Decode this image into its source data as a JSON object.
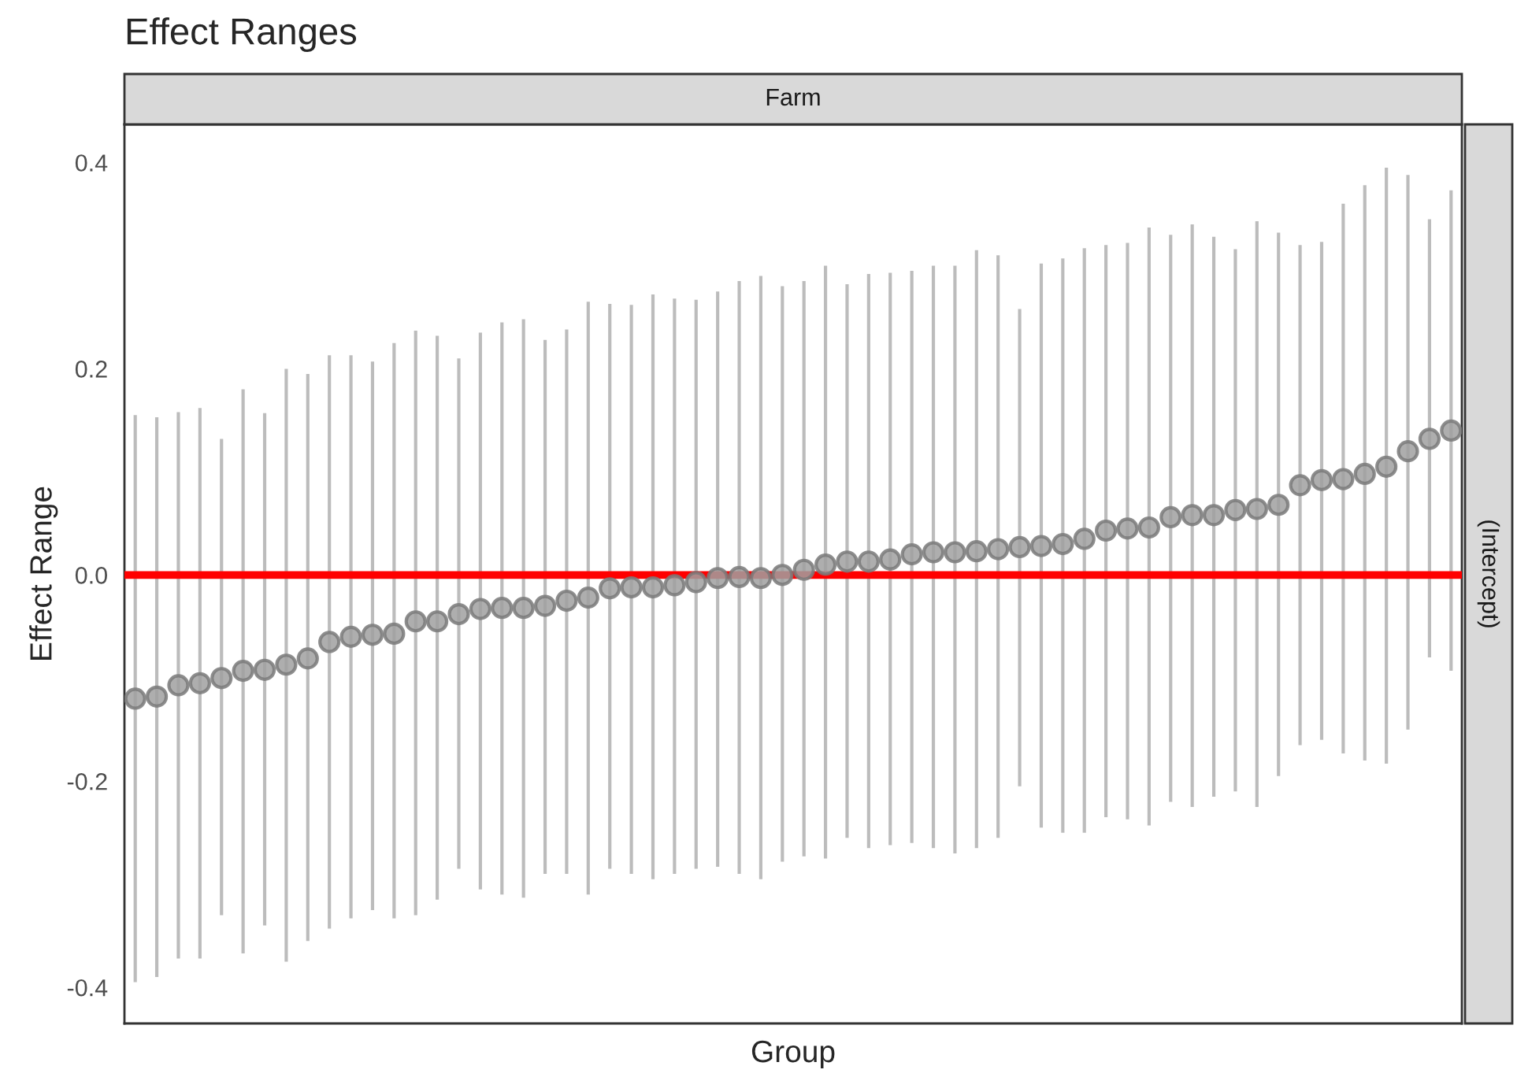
{
  "chart_data": {
    "type": "scatter",
    "title": "Effect Ranges",
    "xlabel": "Group",
    "ylabel": "Effect Range",
    "annotations": [
      "Farm",
      "(Intercept)"
    ],
    "categories": [
      null,
      null,
      null,
      null,
      null,
      null,
      null,
      null,
      null,
      null,
      null,
      null,
      null,
      null,
      null,
      null,
      null,
      null,
      null,
      null,
      null,
      null,
      null,
      null,
      null,
      null,
      null,
      null,
      null,
      null,
      null,
      null,
      null,
      null,
      null,
      null,
      null,
      null,
      null,
      null,
      null,
      null,
      null,
      null,
      null,
      null,
      null,
      null,
      null,
      null,
      null,
      null,
      null,
      null,
      null,
      null,
      null,
      null,
      null,
      null,
      null,
      null
    ],
    "series": [
      {
        "color": "#a0a0a0",
        "values": [
          -0.12,
          -0.118,
          -0.107,
          -0.105,
          -0.1,
          -0.093,
          -0.092,
          -0.087,
          -0.081,
          -0.065,
          -0.06,
          -0.058,
          -0.057,
          -0.045,
          -0.045,
          -0.038,
          -0.033,
          -0.032,
          -0.032,
          -0.03,
          -0.025,
          -0.022,
          -0.013,
          -0.012,
          -0.012,
          -0.01,
          -0.007,
          -0.003,
          -0.002,
          -0.003,
          0.0,
          0.005,
          0.01,
          0.013,
          0.013,
          0.015,
          0.02,
          0.022,
          0.022,
          0.023,
          0.025,
          0.027,
          0.028,
          0.03,
          0.035,
          0.043,
          0.045,
          0.046,
          0.056,
          0.058,
          0.058,
          0.063,
          0.064,
          0.068,
          0.087,
          0.092,
          0.093,
          0.098,
          0.105,
          0.12,
          0.132,
          0.14
        ],
        "errors": [
          [
            -0.395,
            0.155
          ],
          [
            -0.39,
            0.153
          ],
          [
            -0.372,
            0.158
          ],
          [
            -0.372,
            0.162
          ],
          [
            -0.33,
            0.132
          ],
          [
            -0.367,
            0.18
          ],
          [
            -0.34,
            0.157
          ],
          [
            -0.375,
            0.2
          ],
          [
            -0.355,
            0.195
          ],
          [
            -0.343,
            0.213
          ],
          [
            -0.333,
            0.213
          ],
          [
            -0.325,
            0.207
          ],
          [
            -0.333,
            0.225
          ],
          [
            -0.33,
            0.237
          ],
          [
            -0.315,
            0.232
          ],
          [
            -0.285,
            0.21
          ],
          [
            -0.305,
            0.235
          ],
          [
            -0.31,
            0.245
          ],
          [
            -0.313,
            0.248
          ],
          [
            -0.29,
            0.228
          ],
          [
            -0.29,
            0.238
          ],
          [
            -0.31,
            0.265
          ],
          [
            -0.285,
            0.263
          ],
          [
            -0.29,
            0.262
          ],
          [
            -0.295,
            0.272
          ],
          [
            -0.29,
            0.268
          ],
          [
            -0.285,
            0.267
          ],
          [
            -0.283,
            0.275
          ],
          [
            -0.29,
            0.285
          ],
          [
            -0.295,
            0.29
          ],
          [
            -0.278,
            0.28
          ],
          [
            -0.273,
            0.285
          ],
          [
            -0.275,
            0.3
          ],
          [
            -0.255,
            0.282
          ],
          [
            -0.265,
            0.292
          ],
          [
            -0.262,
            0.293
          ],
          [
            -0.26,
            0.295
          ],
          [
            -0.265,
            0.3
          ],
          [
            -0.27,
            0.3
          ],
          [
            -0.265,
            0.315
          ],
          [
            -0.255,
            0.31
          ],
          [
            -0.205,
            0.258
          ],
          [
            -0.245,
            0.302
          ],
          [
            -0.25,
            0.307
          ],
          [
            -0.25,
            0.317
          ],
          [
            -0.235,
            0.32
          ],
          [
            -0.237,
            0.322
          ],
          [
            -0.243,
            0.337
          ],
          [
            -0.22,
            0.33
          ],
          [
            -0.225,
            0.34
          ],
          [
            -0.215,
            0.328
          ],
          [
            -0.21,
            0.316
          ],
          [
            -0.225,
            0.343
          ],
          [
            -0.195,
            0.332
          ],
          [
            -0.165,
            0.32
          ],
          [
            -0.16,
            0.323
          ],
          [
            -0.173,
            0.36
          ],
          [
            -0.18,
            0.378
          ],
          [
            -0.183,
            0.395
          ],
          [
            -0.15,
            0.388
          ],
          [
            -0.08,
            0.345
          ],
          [
            -0.093,
            0.373
          ]
        ]
      }
    ],
    "ref_lines": [
      {
        "axis": "y",
        "value": 0,
        "color": "#ff0000"
      }
    ],
    "ylim": [
      -0.435,
      0.437
    ],
    "yticks": [
      {
        "value": -0.4,
        "label": "-0.4"
      },
      {
        "value": -0.2,
        "label": "-0.2"
      },
      {
        "value": 0,
        "label": "0.0"
      },
      0.2,
      0.4
    ],
    "marker": "circle",
    "grid": false,
    "legend": false
  }
}
